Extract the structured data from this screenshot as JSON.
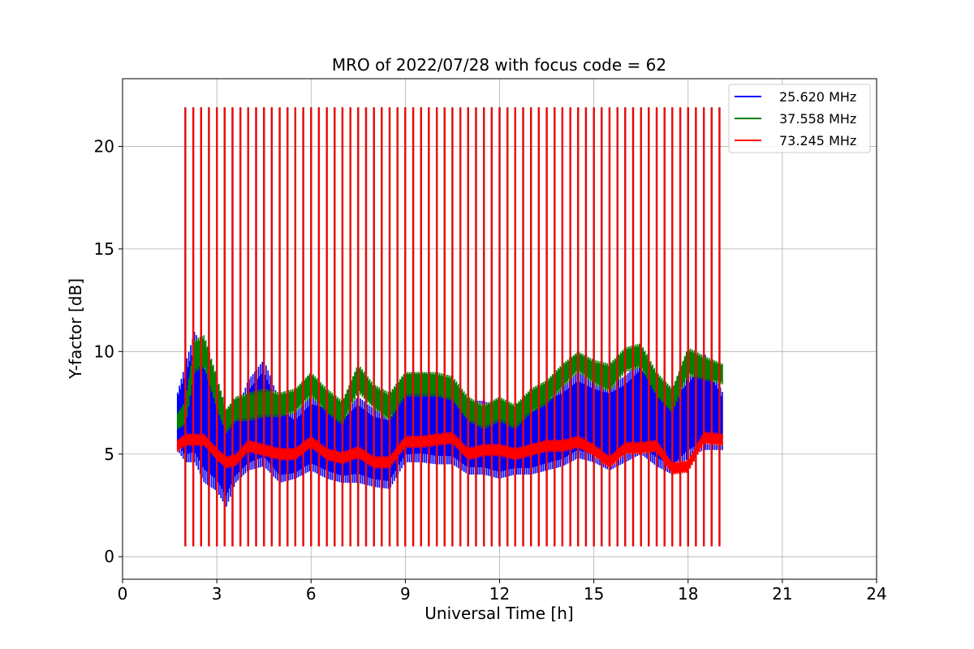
{
  "chart_data": {
    "type": "line",
    "title": "MRO of 2022/07/28 with focus code = 62",
    "xlabel": "Universal Time [h]",
    "ylabel": "Y-factor [dB]",
    "xlim": [
      0,
      24
    ],
    "ylim": [
      -1.1,
      23.3
    ],
    "xticks": [
      0,
      3,
      6,
      9,
      12,
      15,
      18,
      21,
      24
    ],
    "yticks": [
      0,
      5,
      10,
      15,
      20
    ],
    "grid": true,
    "legend_position": "top-right",
    "x_data_range": [
      1.75,
      19.1
    ],
    "calibration_pulses": {
      "start": 2.0,
      "end": 19.0,
      "period_hours": 0.25,
      "high_values": {
        "25.620 MHz": 21.9,
        "37.558 MHz": 21.9,
        "73.245 MHz": 21.9
      },
      "low_values": {
        "25.620 MHz": 0.5,
        "37.558 MHz": 0.5,
        "73.245 MHz": 0.5
      }
    },
    "series": [
      {
        "name": "25.620 MHz",
        "color": "#0000ff",
        "x": [
          1.75,
          2.0,
          2.3,
          2.6,
          3.0,
          3.3,
          3.6,
          4.0,
          4.5,
          5.0,
          5.5,
          6.0,
          6.5,
          7.0,
          7.5,
          8.0,
          8.5,
          9.0,
          9.5,
          10.0,
          10.5,
          11.0,
          11.5,
          12.0,
          12.5,
          13.0,
          13.5,
          14.0,
          14.5,
          15.0,
          15.5,
          16.0,
          16.5,
          17.0,
          17.5,
          18.0,
          18.5,
          19.1
        ],
        "mean": [
          6.6,
          6.5,
          7.2,
          6.9,
          6.0,
          5.2,
          5.3,
          6.0,
          6.8,
          5.5,
          5.2,
          6.0,
          5.8,
          5.3,
          5.8,
          5.3,
          5.2,
          6.5,
          6.8,
          6.6,
          6.5,
          5.8,
          5.8,
          5.5,
          5.6,
          5.6,
          6.0,
          6.2,
          6.8,
          6.5,
          6.2,
          6.6,
          7.2,
          6.6,
          6.2,
          6.8,
          7.2,
          6.8
        ],
        "min": [
          5.2,
          4.6,
          4.6,
          3.6,
          3.2,
          2.4,
          3.6,
          4.2,
          4.4,
          3.6,
          3.8,
          4.2,
          3.8,
          3.6,
          3.6,
          3.4,
          3.3,
          4.6,
          4.6,
          4.5,
          4.5,
          4.0,
          4.0,
          3.8,
          4.0,
          4.0,
          4.2,
          4.4,
          4.8,
          4.6,
          4.2,
          4.6,
          5.0,
          4.4,
          4.0,
          4.8,
          5.2,
          5.2
        ],
        "max": [
          8.0,
          9.4,
          11.0,
          9.8,
          8.4,
          7.0,
          7.0,
          8.6,
          9.6,
          7.6,
          7.0,
          7.8,
          7.6,
          7.0,
          7.8,
          7.2,
          7.0,
          8.6,
          9.0,
          8.8,
          8.4,
          7.6,
          7.6,
          7.2,
          7.4,
          7.4,
          8.0,
          8.4,
          9.0,
          8.6,
          8.4,
          8.8,
          9.6,
          8.8,
          8.2,
          8.8,
          10.0,
          8.0
        ]
      },
      {
        "name": "37.558 MHz",
        "color": "#008000",
        "x": [
          1.75,
          2.0,
          2.3,
          2.6,
          3.0,
          3.3,
          3.6,
          4.0,
          4.5,
          5.0,
          5.5,
          6.0,
          6.5,
          7.0,
          7.5,
          8.0,
          8.5,
          9.0,
          9.5,
          10.0,
          10.5,
          11.0,
          11.5,
          12.0,
          12.5,
          13.0,
          13.5,
          14.0,
          14.5,
          15.0,
          15.5,
          16.0,
          16.5,
          17.0,
          17.5,
          18.0,
          18.5,
          19.1
        ],
        "mean": [
          6.6,
          7.0,
          9.8,
          10.0,
          8.0,
          6.6,
          7.2,
          7.3,
          7.5,
          7.4,
          7.6,
          8.5,
          7.6,
          7.0,
          8.8,
          7.8,
          7.3,
          8.5,
          8.6,
          8.4,
          8.2,
          7.2,
          6.9,
          7.3,
          6.9,
          7.6,
          8.0,
          8.8,
          9.6,
          9.0,
          8.8,
          9.6,
          9.8,
          8.4,
          7.6,
          9.6,
          9.2,
          9.0
        ],
        "min": [
          6.2,
          6.4,
          9.0,
          9.2,
          7.2,
          6.0,
          6.6,
          6.6,
          6.8,
          6.8,
          7.0,
          7.8,
          7.0,
          6.4,
          8.0,
          7.2,
          6.6,
          7.8,
          7.8,
          7.8,
          7.6,
          6.6,
          6.2,
          6.6,
          6.2,
          7.0,
          7.4,
          8.2,
          9.0,
          8.4,
          8.0,
          9.0,
          9.2,
          7.8,
          7.0,
          8.8,
          8.6,
          8.4
        ],
        "max": [
          7.0,
          7.6,
          10.6,
          10.8,
          8.8,
          7.2,
          7.8,
          8.0,
          8.2,
          8.0,
          8.2,
          9.0,
          8.2,
          7.6,
          9.4,
          8.4,
          8.0,
          9.0,
          9.0,
          9.0,
          8.8,
          7.8,
          7.4,
          7.8,
          7.4,
          8.2,
          8.6,
          9.4,
          10.0,
          9.6,
          9.4,
          10.2,
          10.4,
          9.0,
          8.2,
          10.2,
          9.8,
          9.4
        ]
      },
      {
        "name": "73.245 MHz",
        "color": "#ff0000",
        "x": [
          1.75,
          2.0,
          2.3,
          2.6,
          3.0,
          3.3,
          3.6,
          4.0,
          4.5,
          5.0,
          5.5,
          6.0,
          6.5,
          7.0,
          7.5,
          8.0,
          8.5,
          9.0,
          9.5,
          10.0,
          10.5,
          11.0,
          11.5,
          12.0,
          12.5,
          13.0,
          13.5,
          14.0,
          14.5,
          15.0,
          15.5,
          16.0,
          16.5,
          17.0,
          17.5,
          18.0,
          18.5,
          19.1
        ],
        "mean": [
          5.4,
          5.7,
          5.7,
          5.7,
          5.0,
          4.6,
          4.7,
          5.4,
          5.2,
          5.0,
          5.0,
          5.6,
          5.0,
          4.8,
          5.1,
          4.6,
          4.6,
          5.6,
          5.6,
          5.7,
          5.8,
          5.0,
          5.2,
          5.2,
          5.0,
          5.2,
          5.4,
          5.4,
          5.6,
          5.2,
          4.6,
          5.3,
          5.3,
          5.4,
          4.3,
          4.4,
          5.8,
          5.7
        ],
        "min": [
          5.1,
          5.4,
          5.4,
          5.4,
          4.7,
          4.3,
          4.4,
          5.1,
          4.9,
          4.7,
          4.7,
          5.3,
          4.7,
          4.5,
          4.8,
          4.3,
          4.3,
          5.3,
          5.3,
          5.4,
          5.5,
          4.7,
          4.9,
          4.9,
          4.7,
          4.9,
          5.1,
          5.1,
          5.3,
          4.9,
          4.3,
          5.0,
          5.0,
          5.1,
          4.0,
          4.1,
          5.5,
          5.4
        ],
        "max": [
          5.7,
          6.0,
          6.0,
          6.0,
          5.3,
          4.9,
          5.0,
          5.7,
          5.5,
          5.3,
          5.3,
          5.9,
          5.3,
          5.1,
          5.4,
          4.9,
          4.9,
          5.9,
          5.9,
          6.0,
          6.1,
          5.3,
          5.5,
          5.5,
          5.3,
          5.5,
          5.7,
          5.7,
          5.9,
          5.5,
          4.9,
          5.6,
          5.6,
          5.7,
          4.6,
          4.7,
          6.1,
          6.0
        ]
      }
    ]
  }
}
